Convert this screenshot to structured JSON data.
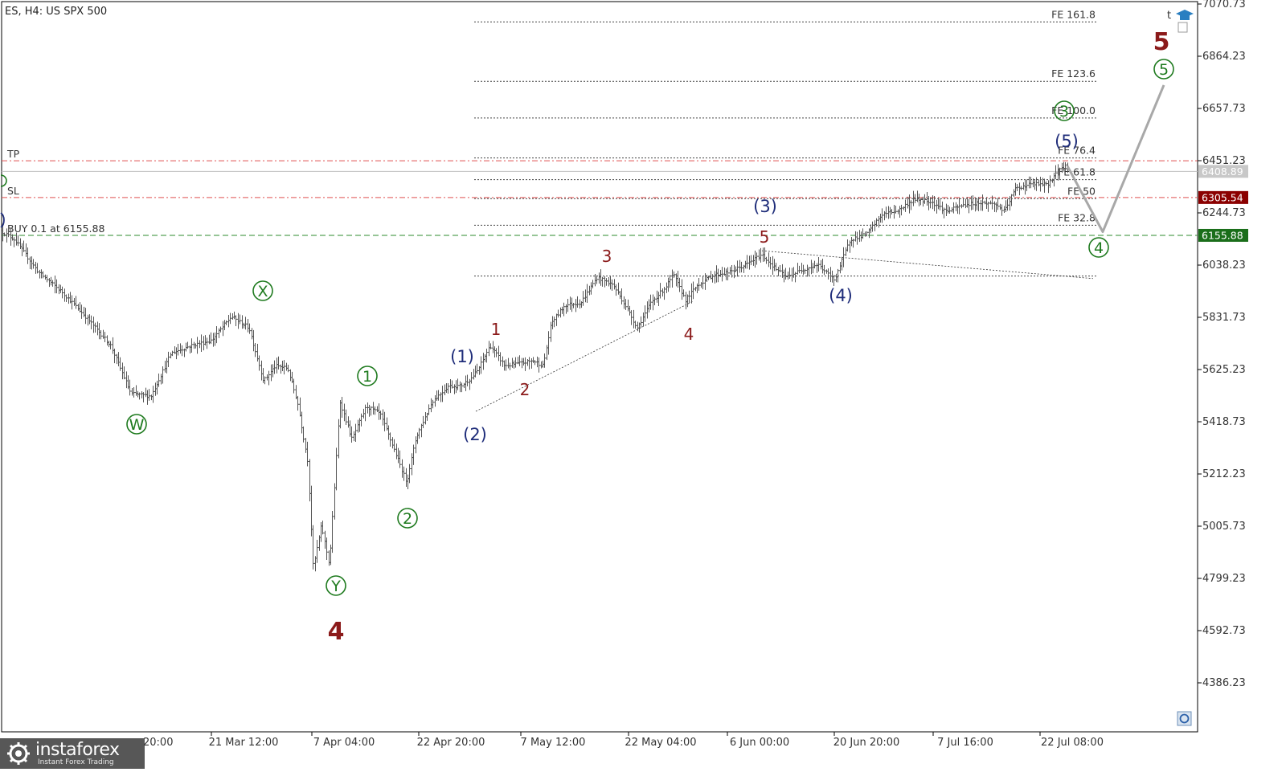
{
  "header": {
    "title": "ES, H4:  US SPX 500"
  },
  "price_axis": {
    "ticks": [
      "7070.73",
      "6864.23",
      "6657.73",
      "6451.23",
      "6244.73",
      "6038.23",
      "5831.73",
      "5625.23",
      "5418.73",
      "5212.23",
      "5005.73",
      "4799.23",
      "4592.73",
      "4386.23"
    ],
    "current_price": "6408.89",
    "sl_price": "6305.54",
    "buy_price": "6155.88"
  },
  "time_axis": {
    "ticks": [
      "21 Mar 12:00",
      "7 Apr 04:00",
      "22 Apr 20:00",
      "7 May 12:00",
      "22 May 04:00",
      "6 Jun 00:00",
      "20 Jun 20:00",
      "7 Jul 16:00",
      "22 Jul 08:00"
    ],
    "partial_left": "20:00"
  },
  "levels": {
    "tp_label": "TP",
    "sl_label": "SL",
    "buy_label": "BUY 0.1 at 6155.88"
  },
  "fibonacci": [
    "FE 161.8",
    "FE 123.6",
    "FE 100.0",
    "FE 76.4",
    "FE 61.8",
    "FE 50",
    "FE 32.8"
  ],
  "waves": {
    "green": [
      "W",
      "X",
      "Y",
      "1",
      "2",
      "3",
      "4",
      "5"
    ],
    "navy": [
      "(1)",
      "(2)",
      "(3)",
      "(4)",
      "(5)"
    ],
    "red_minor": [
      "1",
      "2",
      "3",
      "4",
      "5"
    ],
    "red_major": [
      "4",
      "5"
    ]
  },
  "colors": {
    "candles": "#555555",
    "green_wave": "#1e7a1e",
    "navy_wave": "#1f2d7a",
    "red_wave": "#8b1a1a",
    "tp_sl_line": "#e05050",
    "buy_line": "#2e8b2e",
    "sl_badge": "#8b0000",
    "buy_badge": "#1a6e1a",
    "current_badge": "#c8c8c8",
    "projection": "#a8a8a8"
  },
  "brand": {
    "name": "instaforex",
    "tagline": "Instant Forex Trading"
  },
  "chart_data": {
    "type": "candlestick",
    "instrument": "US SPX 500",
    "timeframe": "H4",
    "ylim": [
      4300,
      7070.73
    ],
    "x": [
      "21 Mar 12:00",
      "7 Apr 04:00",
      "22 Apr 20:00",
      "7 May 12:00",
      "22 May 04:00",
      "6 Jun 00:00",
      "20 Jun 20:00",
      "7 Jul 16:00",
      "22 Jul 08:00"
    ],
    "swing_points": [
      {
        "label": "start",
        "price": 6170
      },
      {
        "label": "W",
        "price": 5500
      },
      {
        "label": "X",
        "price": 5840
      },
      {
        "label": "Y / 4",
        "price": 4830
      },
      {
        "label": "1",
        "price": 5500
      },
      {
        "label": "2",
        "price": 5170
      },
      {
        "label": "(1)",
        "price": 5730
      },
      {
        "label": "(2)",
        "price": 5460
      },
      {
        "label": "3",
        "price": 5995
      },
      {
        "label": "4",
        "price": 5790
      },
      {
        "label": "5 / (3)",
        "price": 6090
      },
      {
        "label": "(4)",
        "price": 5970
      },
      {
        "label": "(5)",
        "price": 6430
      }
    ],
    "projection": [
      {
        "label": "(5)",
        "price": 6430
      },
      {
        "label": "4",
        "price": 6170
      },
      {
        "label": "5",
        "price": 6750
      }
    ],
    "fe_levels": [
      {
        "label": "FE 161.8",
        "price": 7000
      },
      {
        "label": "FE 123.6",
        "price": 6765
      },
      {
        "label": "FE 100.0",
        "price": 6620
      },
      {
        "label": "FE 76.4",
        "price": 6462
      },
      {
        "label": "FE 61.8",
        "price": 6376
      },
      {
        "label": "FE 50",
        "price": 6301
      },
      {
        "label": "FE 32.8",
        "price": 6196
      },
      {
        "label": "base",
        "price": 5995
      }
    ],
    "horizontal_levels": {
      "tp": 6451,
      "current": 6408.89,
      "sl": 6305.54,
      "buy": 6155.88
    }
  }
}
